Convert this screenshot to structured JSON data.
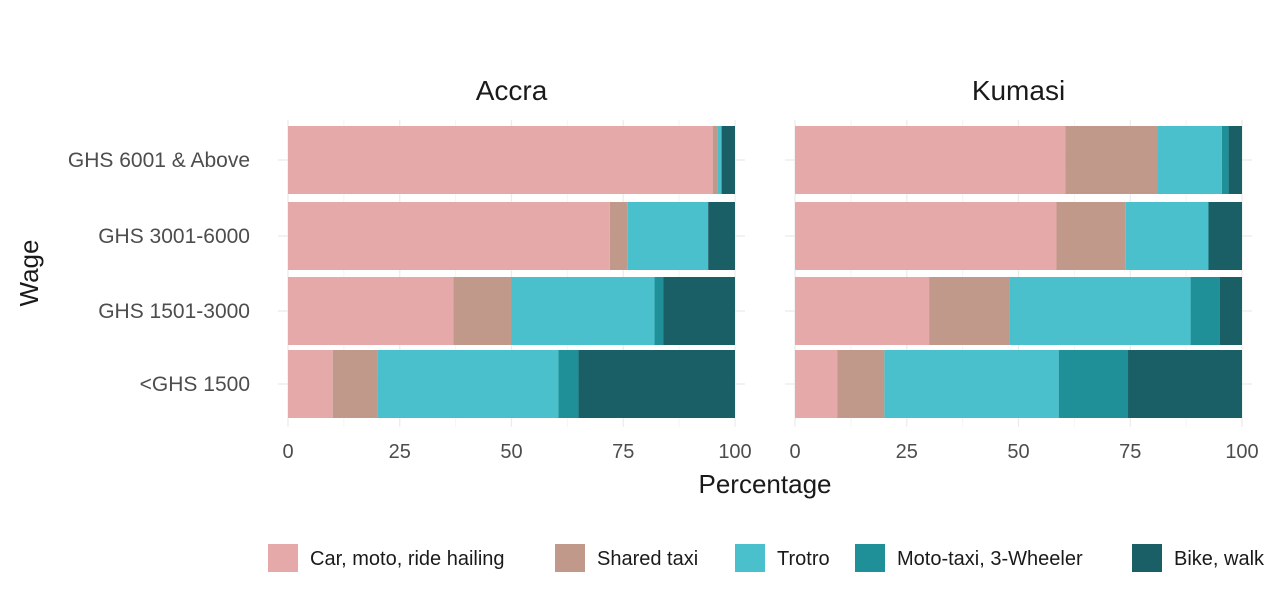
{
  "chart_data": {
    "type": "bar",
    "orientation": "horizontal",
    "stacked": true,
    "xlabel": "Percentage",
    "ylabel": "Wage",
    "xlim": [
      0,
      100
    ],
    "xticks": [
      0,
      25,
      50,
      75,
      100
    ],
    "legend_position": "bottom",
    "categories": [
      "GHS 6001 & Above",
      "GHS 3001-6000",
      "GHS 1501-3000",
      "<GHS 1500"
    ],
    "series": [
      {
        "name": "Car, moto, ride hailing",
        "color": "#e6a9a9"
      },
      {
        "name": "Shared taxi",
        "color": "#c0998a"
      },
      {
        "name": "Trotro",
        "color": "#49c0cc"
      },
      {
        "name": "Moto-taxi, 3-Wheeler",
        "color": "#1f8f98"
      },
      {
        "name": "Bike, walk",
        "color": "#1a5e66"
      }
    ],
    "panels": [
      {
        "title": "Accra",
        "values": [
          [
            95,
            1,
            1,
            0,
            3
          ],
          [
            72,
            4,
            18,
            0,
            6
          ],
          [
            37,
            13,
            32,
            2,
            16
          ],
          [
            10,
            10,
            40.5,
            4.5,
            35
          ]
        ]
      },
      {
        "title": "Kumasi",
        "values": [
          [
            60.5,
            20.5,
            14.5,
            1.5,
            3
          ],
          [
            58.5,
            15.5,
            18.5,
            0,
            7.5
          ],
          [
            30,
            18,
            40.5,
            6.5,
            5
          ],
          [
            9.5,
            10.5,
            39,
            15.5,
            25.5
          ]
        ]
      }
    ]
  }
}
